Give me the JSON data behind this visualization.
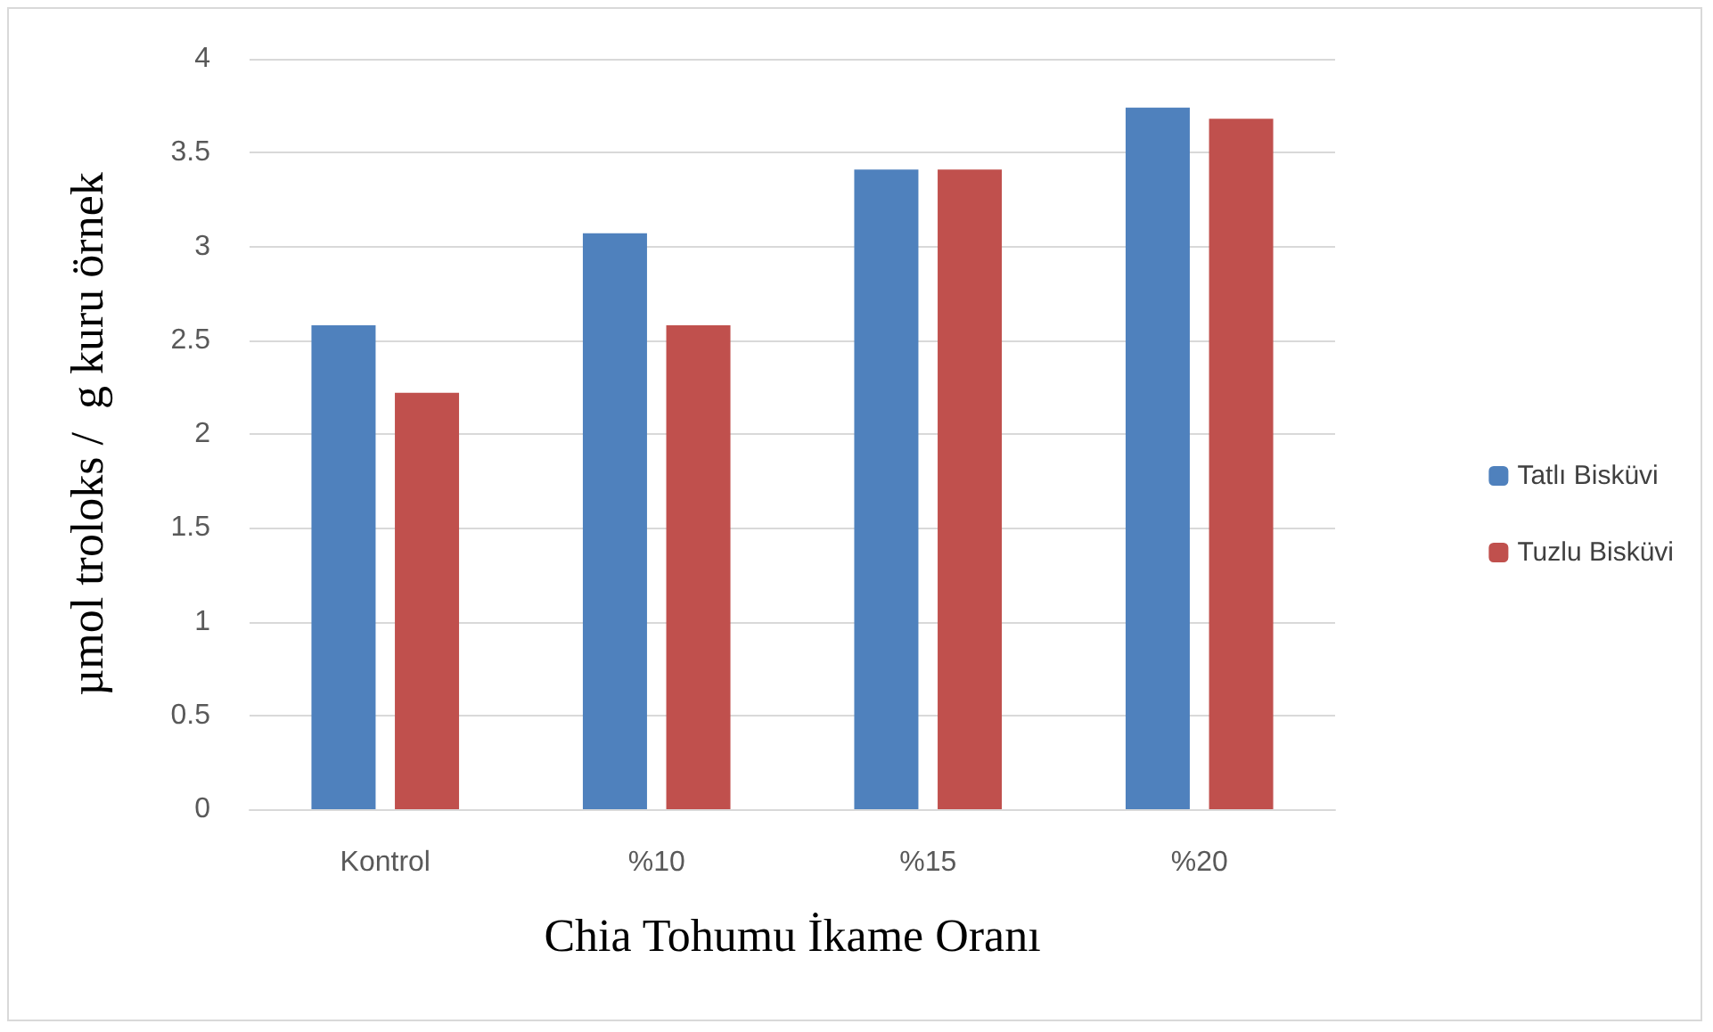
{
  "chart_data": {
    "type": "bar",
    "xlabel": "Chia Tohumu İkame Oranı",
    "ylabel": "µmol troloks /  g kuru örnek",
    "categories": [
      "Kontrol",
      "%10",
      "%15",
      "%20"
    ],
    "series": [
      {
        "name": "Tatlı Bisküvi",
        "color": "#4f81bd",
        "values": [
          2.58,
          3.07,
          3.41,
          3.74
        ]
      },
      {
        "name": "Tuzlu Bisküvi",
        "color": "#c0504d",
        "values": [
          2.22,
          2.58,
          3.41,
          3.68
        ]
      }
    ],
    "ylim": [
      0,
      4
    ],
    "yticks": [
      0,
      0.5,
      1,
      1.5,
      2,
      2.5,
      3,
      3.5,
      4
    ],
    "grid": "y",
    "legend": "right"
  }
}
